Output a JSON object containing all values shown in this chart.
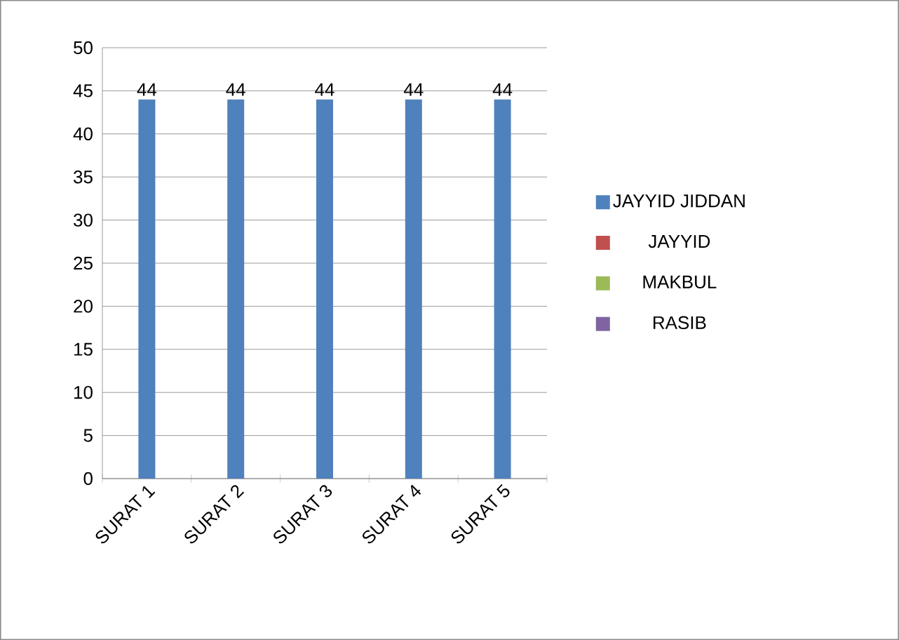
{
  "chart_data": {
    "type": "bar",
    "categories": [
      "SURAT 1",
      "SURAT 2",
      "SURAT 3",
      "SURAT 4",
      "SURAT 5"
    ],
    "series": [
      {
        "name": "JAYYID JIDDAN",
        "color": "#4f81bd",
        "values": [
          44,
          44,
          44,
          44,
          44
        ],
        "value_labels": [
          "44",
          "44",
          "44",
          "44",
          "44"
        ]
      },
      {
        "name": "JAYYID",
        "color": "#c0504d",
        "values": [
          null,
          null,
          null,
          null,
          null
        ]
      },
      {
        "name": "MAKBUL",
        "color": "#9bbb59",
        "values": [
          null,
          null,
          null,
          null,
          null
        ]
      },
      {
        "name": "RASIB",
        "color": "#8064a2",
        "values": [
          null,
          null,
          null,
          null,
          null
        ]
      }
    ],
    "ylim": [
      0,
      50
    ],
    "yticks": [
      0,
      5,
      10,
      15,
      20,
      25,
      30,
      35,
      40,
      45,
      50
    ],
    "grid": "y",
    "legend": "right"
  }
}
